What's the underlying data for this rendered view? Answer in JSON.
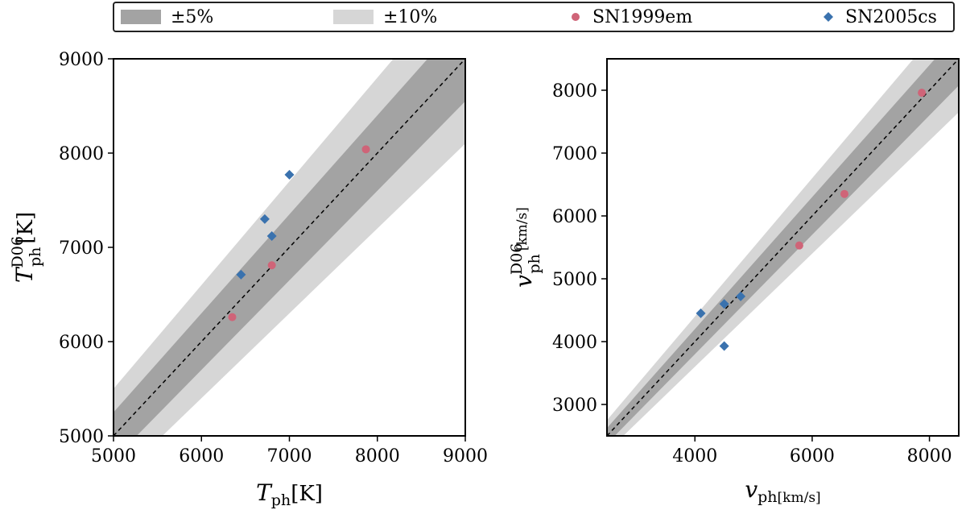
{
  "legend": {
    "band5": "±5%",
    "band10": "±10%",
    "sn1999em": "SN1999em",
    "sn2005cs": "SN2005cs"
  },
  "colors": {
    "band5": "#a3a3a3",
    "band10": "#d6d6d6",
    "sn1999em": "#cf6478",
    "sn2005cs": "#3a72ae",
    "one_to_one": "#000000"
  },
  "chart_data": [
    {
      "type": "scatter",
      "xlabel_main": "T",
      "xlabel_sub": "ph",
      "xlabel_unit": "[K]",
      "ylabel_main": "T",
      "ylabel_sub": "ph",
      "ylabel_sup": "D06",
      "ylabel_unit": "[K]",
      "xlim": [
        5000,
        9000
      ],
      "ylim": [
        5000,
        9000
      ],
      "xticks": [
        5000,
        6000,
        7000,
        8000,
        9000
      ],
      "yticks": [
        5000,
        6000,
        7000,
        8000,
        9000
      ],
      "xtick_labels": [
        "5000",
        "6000",
        "7000",
        "8000",
        "9000"
      ],
      "ytick_labels": [
        "5000",
        "6000",
        "7000",
        "8000",
        "9000"
      ],
      "bands": [
        0.05,
        0.1
      ],
      "one_to_one": true,
      "series": [
        {
          "name": "SN1999em",
          "marker": "circle",
          "points": [
            [
              6350,
              6260
            ],
            [
              6800,
              6810
            ],
            [
              7870,
              8040
            ]
          ]
        },
        {
          "name": "SN2005cs",
          "marker": "diamond",
          "points": [
            [
              6450,
              6710
            ],
            [
              6720,
              7300
            ],
            [
              6800,
              7120
            ],
            [
              7000,
              7770
            ]
          ]
        }
      ]
    },
    {
      "type": "scatter",
      "xlabel_main": "v",
      "xlabel_sub": "ph",
      "xlabel_unit": "[km/s]",
      "ylabel_main": "v",
      "ylabel_sub": "ph",
      "ylabel_sup": "D06",
      "ylabel_unit": "[km/s]",
      "xlim": [
        2500,
        8500
      ],
      "ylim": [
        2500,
        8500
      ],
      "xticks": [
        4000,
        6000,
        8000
      ],
      "yticks": [
        3000,
        4000,
        5000,
        6000,
        7000,
        8000
      ],
      "xtick_labels": [
        "4000",
        "6000",
        "8000"
      ],
      "ytick_labels": [
        "3000",
        "4000",
        "5000",
        "6000",
        "7000",
        "8000"
      ],
      "bands": [
        0.05,
        0.1
      ],
      "one_to_one": true,
      "series": [
        {
          "name": "SN1999em",
          "marker": "circle",
          "points": [
            [
              5780,
              5530
            ],
            [
              6550,
              6350
            ],
            [
              7870,
              7960
            ]
          ]
        },
        {
          "name": "SN2005cs",
          "marker": "diamond",
          "points": [
            [
              4100,
              4450
            ],
            [
              4500,
              4600
            ],
            [
              4780,
              4720
            ],
            [
              4500,
              3930
            ]
          ]
        }
      ]
    }
  ]
}
